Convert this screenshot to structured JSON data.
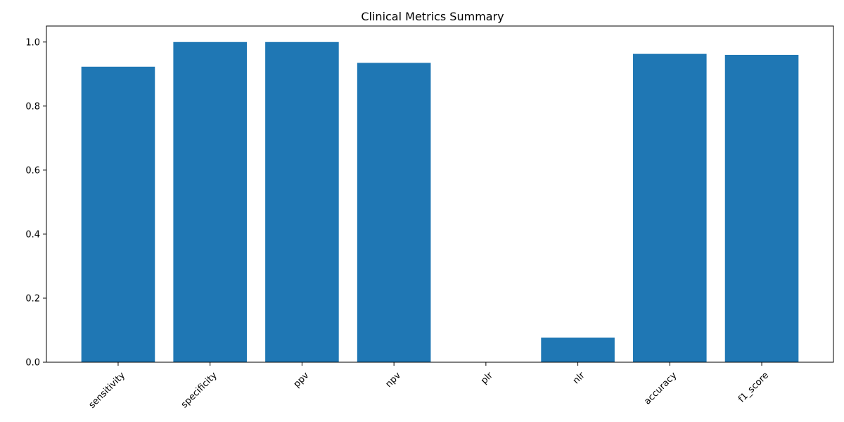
{
  "chart_data": {
    "type": "bar",
    "title": "Clinical Metrics Summary",
    "xlabel": "",
    "ylabel": "",
    "categories": [
      "sensitivity",
      "specificity",
      "ppv",
      "npv",
      "plr",
      "nlr",
      "accuracy",
      "f1_score"
    ],
    "values": [
      0.923,
      1.0,
      1.0,
      0.935,
      0.0,
      0.077,
      0.963,
      0.96
    ],
    "ylim": [
      0,
      1.05
    ],
    "yticks": [
      0.0,
      0.2,
      0.4,
      0.6,
      0.8,
      1.0
    ],
    "ytick_labels": [
      "0.0",
      "0.2",
      "0.4",
      "0.6",
      "0.8",
      "1.0"
    ],
    "bar_color": "#1f77b4",
    "grid": false,
    "xtick_rotation": 45
  }
}
